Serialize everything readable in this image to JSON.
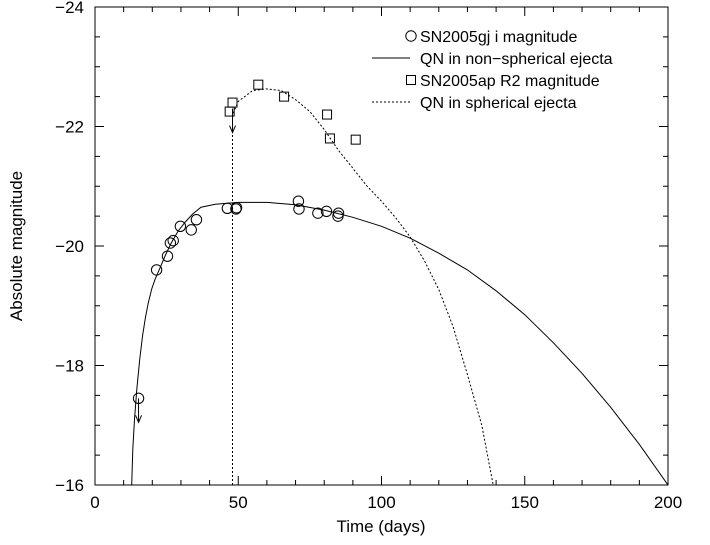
{
  "chart_data": {
    "type": "scatter",
    "title": "",
    "xlabel": "Time (days)",
    "ylabel": "Absolute magnitude",
    "xlim": [
      0,
      200
    ],
    "ylim": [
      -16,
      -24
    ],
    "y_inverted": true,
    "grid": false,
    "legend_position": "top-right",
    "x_ticks": [
      0,
      50,
      100,
      150,
      200
    ],
    "x_tick_labels": [
      "0",
      "50",
      "100",
      "150",
      "200"
    ],
    "y_ticks": [
      -16,
      -18,
      -20,
      -22,
      -24
    ],
    "y_tick_labels": [
      "−16",
      "−18",
      "−20",
      "−22",
      "−24"
    ],
    "series": [
      {
        "name": "SN2005gj i magnitude",
        "kind": "points",
        "marker": "circle",
        "points": [
          [
            15.2,
            -17.45
          ],
          [
            21.5,
            -19.6
          ],
          [
            25.3,
            -19.83
          ],
          [
            26.3,
            -20.05
          ],
          [
            27.3,
            -20.09
          ],
          [
            29.8,
            -20.33
          ],
          [
            33.6,
            -20.27
          ],
          [
            35.4,
            -20.44
          ],
          [
            46.2,
            -20.63
          ],
          [
            49.2,
            -20.62
          ],
          [
            49.4,
            -20.64
          ],
          [
            71.0,
            -20.75
          ],
          [
            71.2,
            -20.62
          ],
          [
            77.8,
            -20.55
          ],
          [
            80.8,
            -20.58
          ],
          [
            84.8,
            -20.5
          ],
          [
            85.0,
            -20.55
          ]
        ],
        "upper_limit_arrow_at": [
          15.2,
          -17.45
        ]
      },
      {
        "name": "QN in non−spherical ejecta",
        "kind": "line",
        "dash": "solid",
        "points": [
          [
            12.8,
            -16.0
          ],
          [
            13.2,
            -16.6
          ],
          [
            13.8,
            -17.1
          ],
          [
            14.6,
            -17.6
          ],
          [
            15.6,
            -18.1
          ],
          [
            16.6,
            -18.5
          ],
          [
            17.6,
            -18.8
          ],
          [
            18.6,
            -19.05
          ],
          [
            19.8,
            -19.28
          ],
          [
            21.0,
            -19.45
          ],
          [
            22.6,
            -19.62
          ],
          [
            24.6,
            -19.85
          ],
          [
            26.6,
            -20.05
          ],
          [
            29.0,
            -20.25
          ],
          [
            31.5,
            -20.4
          ],
          [
            34.0,
            -20.53
          ],
          [
            37.0,
            -20.65
          ],
          [
            42.0,
            -20.7
          ],
          [
            50.0,
            -20.73
          ],
          [
            60.0,
            -20.73
          ],
          [
            70.0,
            -20.69
          ],
          [
            80.0,
            -20.6
          ],
          [
            90.0,
            -20.48
          ],
          [
            100.0,
            -20.33
          ],
          [
            110.0,
            -20.13
          ],
          [
            120.0,
            -19.88
          ],
          [
            130.0,
            -19.6
          ],
          [
            140.0,
            -19.25
          ],
          [
            150.0,
            -18.85
          ],
          [
            160.0,
            -18.38
          ],
          [
            170.0,
            -17.87
          ],
          [
            180.0,
            -17.3
          ],
          [
            190.0,
            -16.68
          ],
          [
            200.0,
            -16.0
          ]
        ]
      },
      {
        "name": "SN2005ap R2 magnitude",
        "kind": "points",
        "marker": "square",
        "points": [
          [
            47.0,
            -22.25
          ],
          [
            48.0,
            -22.4
          ],
          [
            57.0,
            -22.7
          ],
          [
            66.0,
            -22.5
          ],
          [
            81.0,
            -22.2
          ],
          [
            82.0,
            -21.8
          ],
          [
            91.0,
            -21.78
          ]
        ],
        "upper_limit_arrow_at": [
          48.0,
          -22.3
        ]
      },
      {
        "name": "QN in spherical ejecta",
        "kind": "line",
        "dash": "dotted",
        "points": [
          [
            48.0,
            -16.0
          ],
          [
            48.0,
            -22.2
          ],
          [
            50.0,
            -22.42
          ],
          [
            55.0,
            -22.6
          ],
          [
            60.0,
            -22.63
          ],
          [
            65.0,
            -22.6
          ],
          [
            70.0,
            -22.45
          ],
          [
            75.0,
            -22.25
          ],
          [
            80.0,
            -21.95
          ],
          [
            85.0,
            -21.6
          ],
          [
            90.0,
            -21.3
          ],
          [
            95.0,
            -21.0
          ],
          [
            100.0,
            -20.75
          ],
          [
            105.0,
            -20.47
          ],
          [
            110.0,
            -20.15
          ],
          [
            115.0,
            -19.75
          ],
          [
            120.0,
            -19.27
          ],
          [
            125.0,
            -18.65
          ],
          [
            130.0,
            -17.85
          ],
          [
            135.0,
            -17.0
          ],
          [
            139.0,
            -16.0
          ]
        ]
      }
    ]
  }
}
